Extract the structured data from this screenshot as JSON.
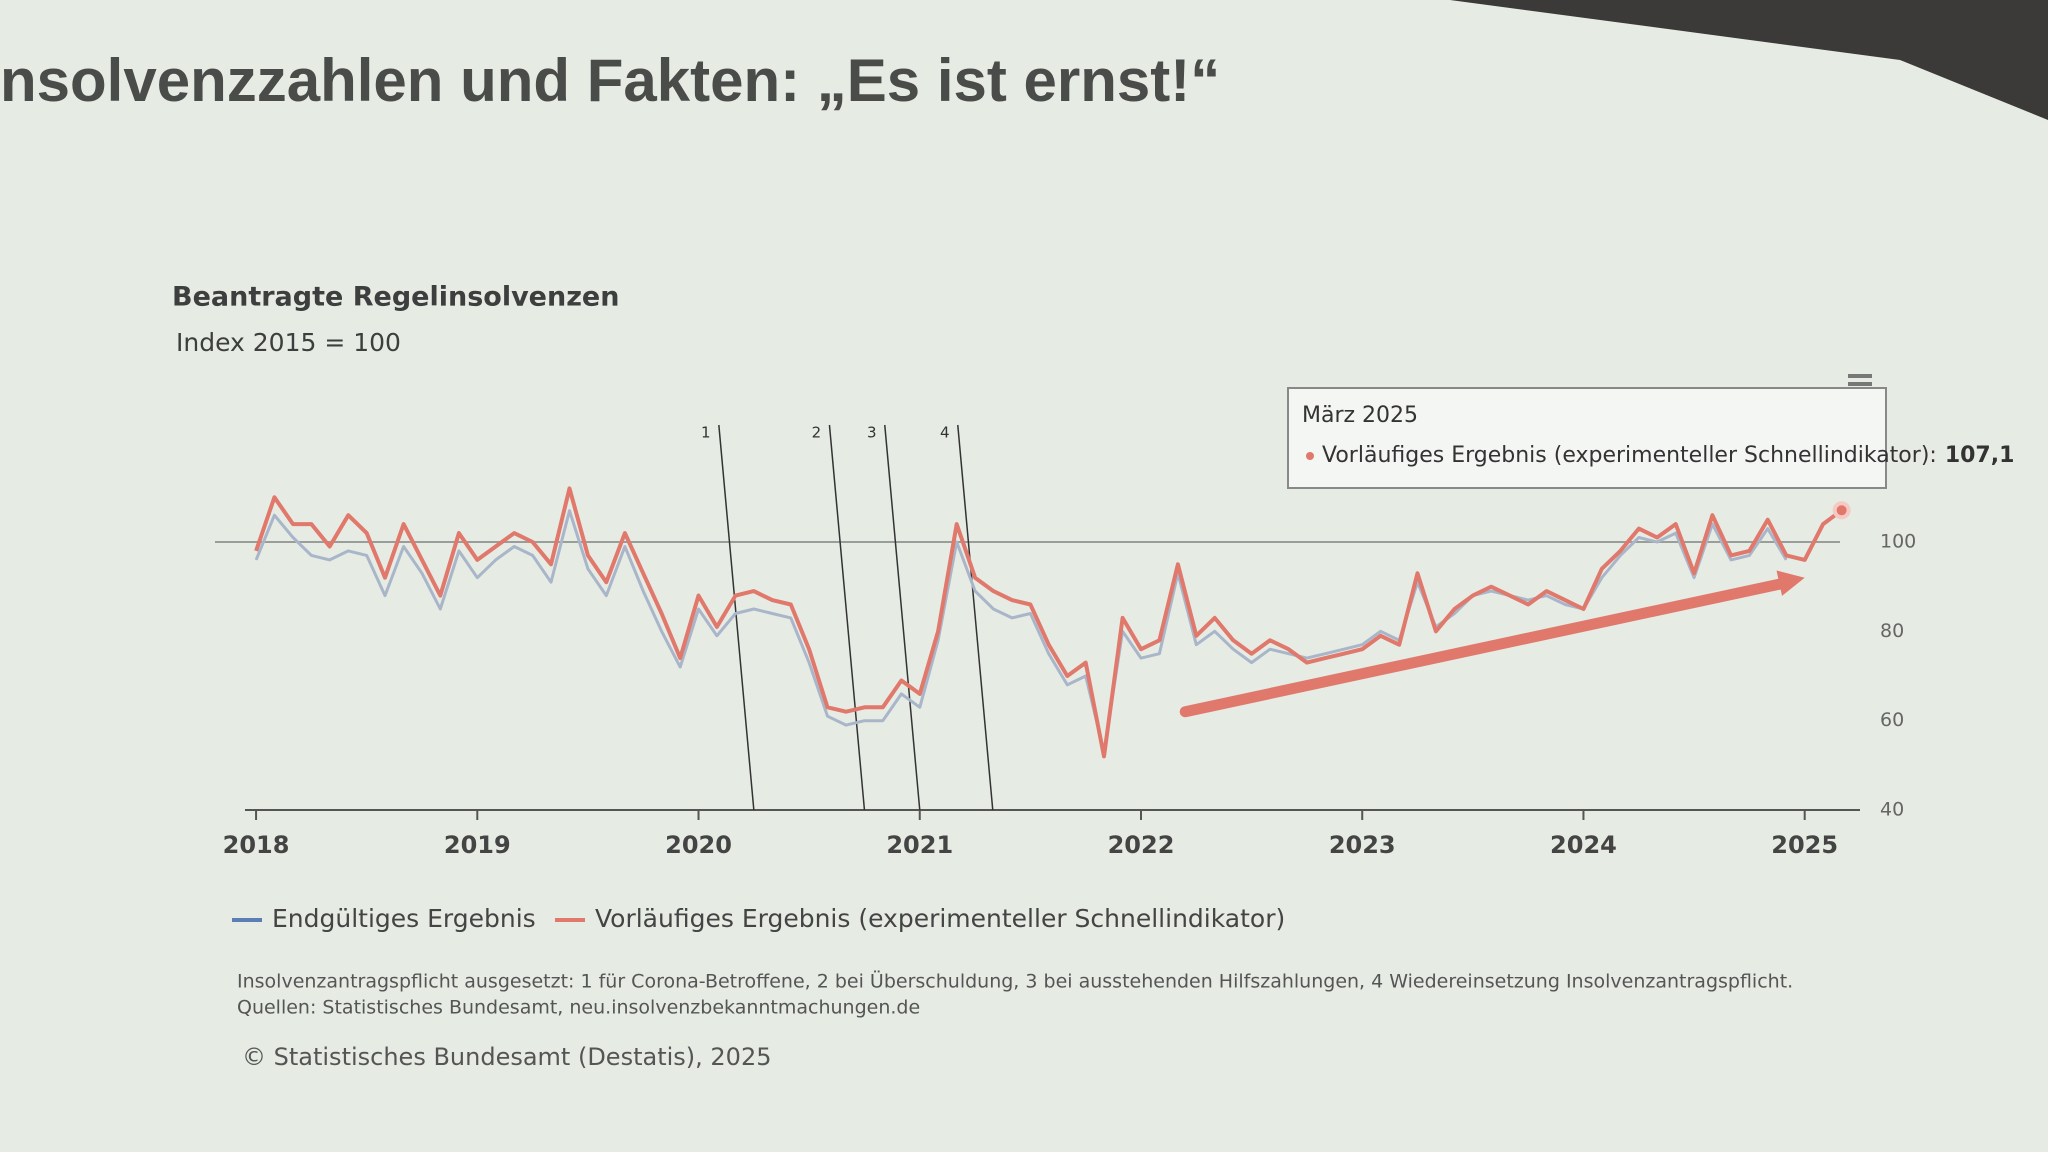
{
  "slide_title": "nsolvenzzahlen und Fakten: „Es ist ernst!“",
  "chart_data": {
    "type": "line",
    "title": "Beantragte Regelinsolvenzen",
    "subtitle": "Index 2015 = 100",
    "x": [
      2018,
      2018.083,
      2018.167,
      2018.25,
      2018.333,
      2018.417,
      2018.5,
      2018.583,
      2018.667,
      2018.75,
      2018.833,
      2018.917,
      2019,
      2019.083,
      2019.167,
      2019.25,
      2019.333,
      2019.417,
      2019.5,
      2019.583,
      2019.667,
      2019.75,
      2019.833,
      2019.917,
      2020,
      2020.083,
      2020.167,
      2020.25,
      2020.333,
      2020.417,
      2020.5,
      2020.583,
      2020.667,
      2020.75,
      2020.833,
      2020.917,
      2021,
      2021.083,
      2021.167,
      2021.25,
      2021.333,
      2021.417,
      2021.5,
      2021.583,
      2021.667,
      2021.75,
      2021.833,
      2021.917,
      2022,
      2022.083,
      2022.167,
      2022.25,
      2022.333,
      2022.417,
      2022.5,
      2022.583,
      2022.667,
      2022.75,
      2022.833,
      2022.917,
      2023,
      2023.083,
      2023.167,
      2023.25,
      2023.333,
      2023.417,
      2023.5,
      2023.583,
      2023.667,
      2023.75,
      2023.833,
      2023.917,
      2024,
      2024.083,
      2024.167,
      2024.25,
      2024.333,
      2024.417,
      2024.5,
      2024.583,
      2024.667,
      2024.75,
      2024.833,
      2024.917,
      2025,
      2025.083,
      2025.167
    ],
    "series": [
      {
        "name": "Endgültiges Ergebnis",
        "color": "#a9b6c9",
        "legend_color": "#5b7fb5",
        "values": [
          96,
          106,
          101,
          97,
          96,
          98,
          97,
          88,
          99,
          93,
          85,
          98,
          92,
          96,
          99,
          97,
          91,
          107,
          94,
          88,
          99,
          89,
          80,
          72,
          85,
          79,
          84,
          85,
          84,
          83,
          73,
          61,
          59,
          60,
          60,
          66,
          63,
          78,
          100,
          89,
          85,
          83,
          84,
          75,
          68,
          70,
          53,
          80,
          74,
          75,
          93,
          77,
          80,
          76,
          73,
          76,
          75,
          74,
          75,
          76,
          77,
          80,
          78,
          91,
          81,
          84,
          88,
          89,
          88,
          87,
          88,
          86,
          85,
          92,
          97,
          101,
          100,
          102,
          92,
          104,
          96,
          97,
          103,
          96,
          null,
          null,
          null
        ]
      },
      {
        "name": "Vorläufiges Ergebnis (experimenteller Schnellindikator)",
        "color": "#e0786c",
        "values": [
          98,
          110,
          104,
          104,
          99,
          106,
          102,
          92,
          104,
          96,
          88,
          102,
          96,
          99,
          102,
          100,
          95,
          112,
          97,
          91,
          102,
          93,
          84,
          74,
          88,
          81,
          88,
          89,
          87,
          86,
          76,
          63,
          62,
          63,
          63,
          69,
          66,
          80,
          104,
          92,
          89,
          87,
          86,
          77,
          70,
          73,
          52,
          83,
          76,
          78,
          95,
          79,
          83,
          78,
          75,
          78,
          76,
          73,
          74,
          75,
          76,
          79,
          77,
          93,
          80,
          85,
          88,
          90,
          88,
          86,
          89,
          87,
          85,
          94,
          98,
          103,
          101,
          104,
          93,
          106,
          97,
          98,
          105,
          97,
          96,
          104,
          107.1
        ]
      }
    ],
    "xlim": [
      2017.95,
      2025.25
    ],
    "xticks": [
      2018,
      2019,
      2020,
      2021,
      2022,
      2023,
      2024,
      2025
    ],
    "ylim": [
      40,
      115
    ],
    "yticks": [
      40,
      60,
      80,
      100
    ],
    "reference_line": 100,
    "events": [
      {
        "label": "1",
        "x": 2020.25
      },
      {
        "label": "2",
        "x": 2020.75
      },
      {
        "label": "3",
        "x": 2021.0
      },
      {
        "label": "4",
        "x": 2021.33
      }
    ],
    "trend_arrow": {
      "x": [
        2022.2,
        2025.0
      ],
      "y": [
        62,
        92
      ],
      "color": "#e0786c"
    },
    "tooltip": {
      "title": "März 2025",
      "label": "Vorläufiges Ergebnis (experimenteller Schnellindikator):",
      "value_label": "107,1"
    },
    "footnotes": [
      "Insolvenzantragspflicht ausgesetzt: 1 für Corona-Betroffene, 2 bei Überschuldung, 3 bei ausstehenden Hilfszahlungen, 4 Wiedereinsetzung Insolvenzantragspflicht.",
      "Quellen: Statistisches Bundesamt, neu.insolvenzbekanntmachungen.de"
    ],
    "copyright": "© Statistisches Bundesamt (Destatis), 2025"
  }
}
